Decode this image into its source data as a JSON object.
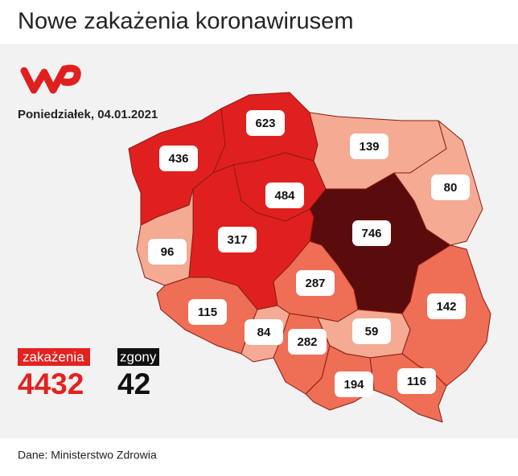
{
  "header": {
    "title": "Nowe zakażenia koronawirusem"
  },
  "date": "Poniedziałek, 04.01.2021",
  "regions": [
    {
      "value": 436,
      "color": "#e0201f"
    },
    {
      "value": 623,
      "color": "#e0201f"
    },
    {
      "value": 484,
      "color": "#e0201f"
    },
    {
      "value": 139,
      "color": "#f4aa93"
    },
    {
      "value": 80,
      "color": "#f4aa93"
    },
    {
      "value": 746,
      "color": "#5a0b0b"
    },
    {
      "value": 96,
      "color": "#f4aa93"
    },
    {
      "value": 317,
      "color": "#e0201f"
    },
    {
      "value": 287,
      "color": "#ee6e56"
    },
    {
      "value": 115,
      "color": "#ee6e56"
    },
    {
      "value": 84,
      "color": "#f4aa93"
    },
    {
      "value": 282,
      "color": "#ee6e56"
    },
    {
      "value": 59,
      "color": "#f4aa93"
    },
    {
      "value": 142,
      "color": "#ee6e56"
    },
    {
      "value": 116,
      "color": "#ee6e56"
    },
    {
      "value": 194,
      "color": "#ee6e56"
    }
  ],
  "legend": {
    "cases_label": "zakażenia",
    "cases_total": "4432",
    "deaths_label": "zgony",
    "deaths_total": "42"
  },
  "footer": {
    "source": "Dane: Ministerstwo Zdrowia"
  }
}
